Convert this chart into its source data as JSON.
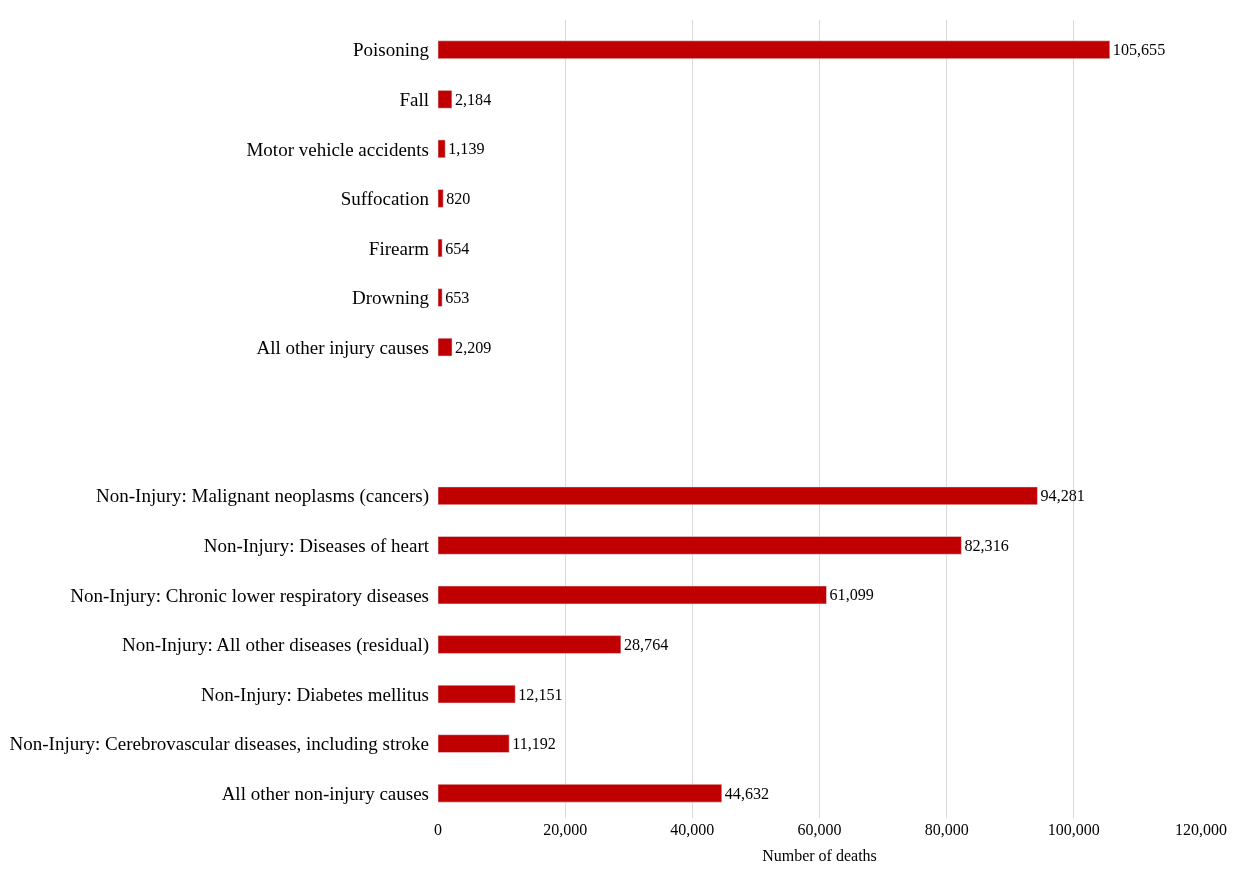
{
  "chart_data": {
    "type": "bar",
    "orientation": "horizontal",
    "xlabel": "Number of deaths",
    "categories": [
      "Poisoning",
      "Fall",
      "Motor vehicle accidents",
      "Suffocation",
      "Firearm",
      "Drowning",
      "All other injury causes",
      null,
      null,
      "Non-Injury: Malignant neoplasms (cancers)",
      "Non-Injury: Diseases of heart",
      "Non-Injury: Chronic lower respiratory diseases",
      "Non-Injury: All other diseases (residual)",
      "Non-Injury: Diabetes mellitus",
      "Non-Injury: Cerebrovascular diseases, including stroke",
      "All other non-injury causes"
    ],
    "values": [
      105655,
      2184,
      1139,
      820,
      654,
      653,
      2209,
      null,
      null,
      94281,
      82316,
      61099,
      28764,
      12151,
      11192,
      44632
    ],
    "value_labels": [
      "105,655",
      "2,184",
      "1,139",
      "820",
      "654",
      "653",
      "2,209",
      null,
      null,
      "94,281",
      "82,316",
      "61,099",
      "28,764",
      "12,151",
      "11,192",
      "44,632"
    ],
    "color": "#c00000",
    "xlim": [
      0,
      120000
    ],
    "xticks": [
      0,
      {
        "value": 20000,
        "label": "20,000"
      },
      {
        "value": 40000,
        "label": "40,000"
      },
      {
        "value": 60000,
        "label": "60,000"
      },
      {
        "value": 80000,
        "label": "80,000"
      },
      {
        "value": 100000,
        "label": "100,000"
      },
      {
        "value": 120000,
        "label": "120,000"
      }
    ],
    "grid": "x"
  }
}
